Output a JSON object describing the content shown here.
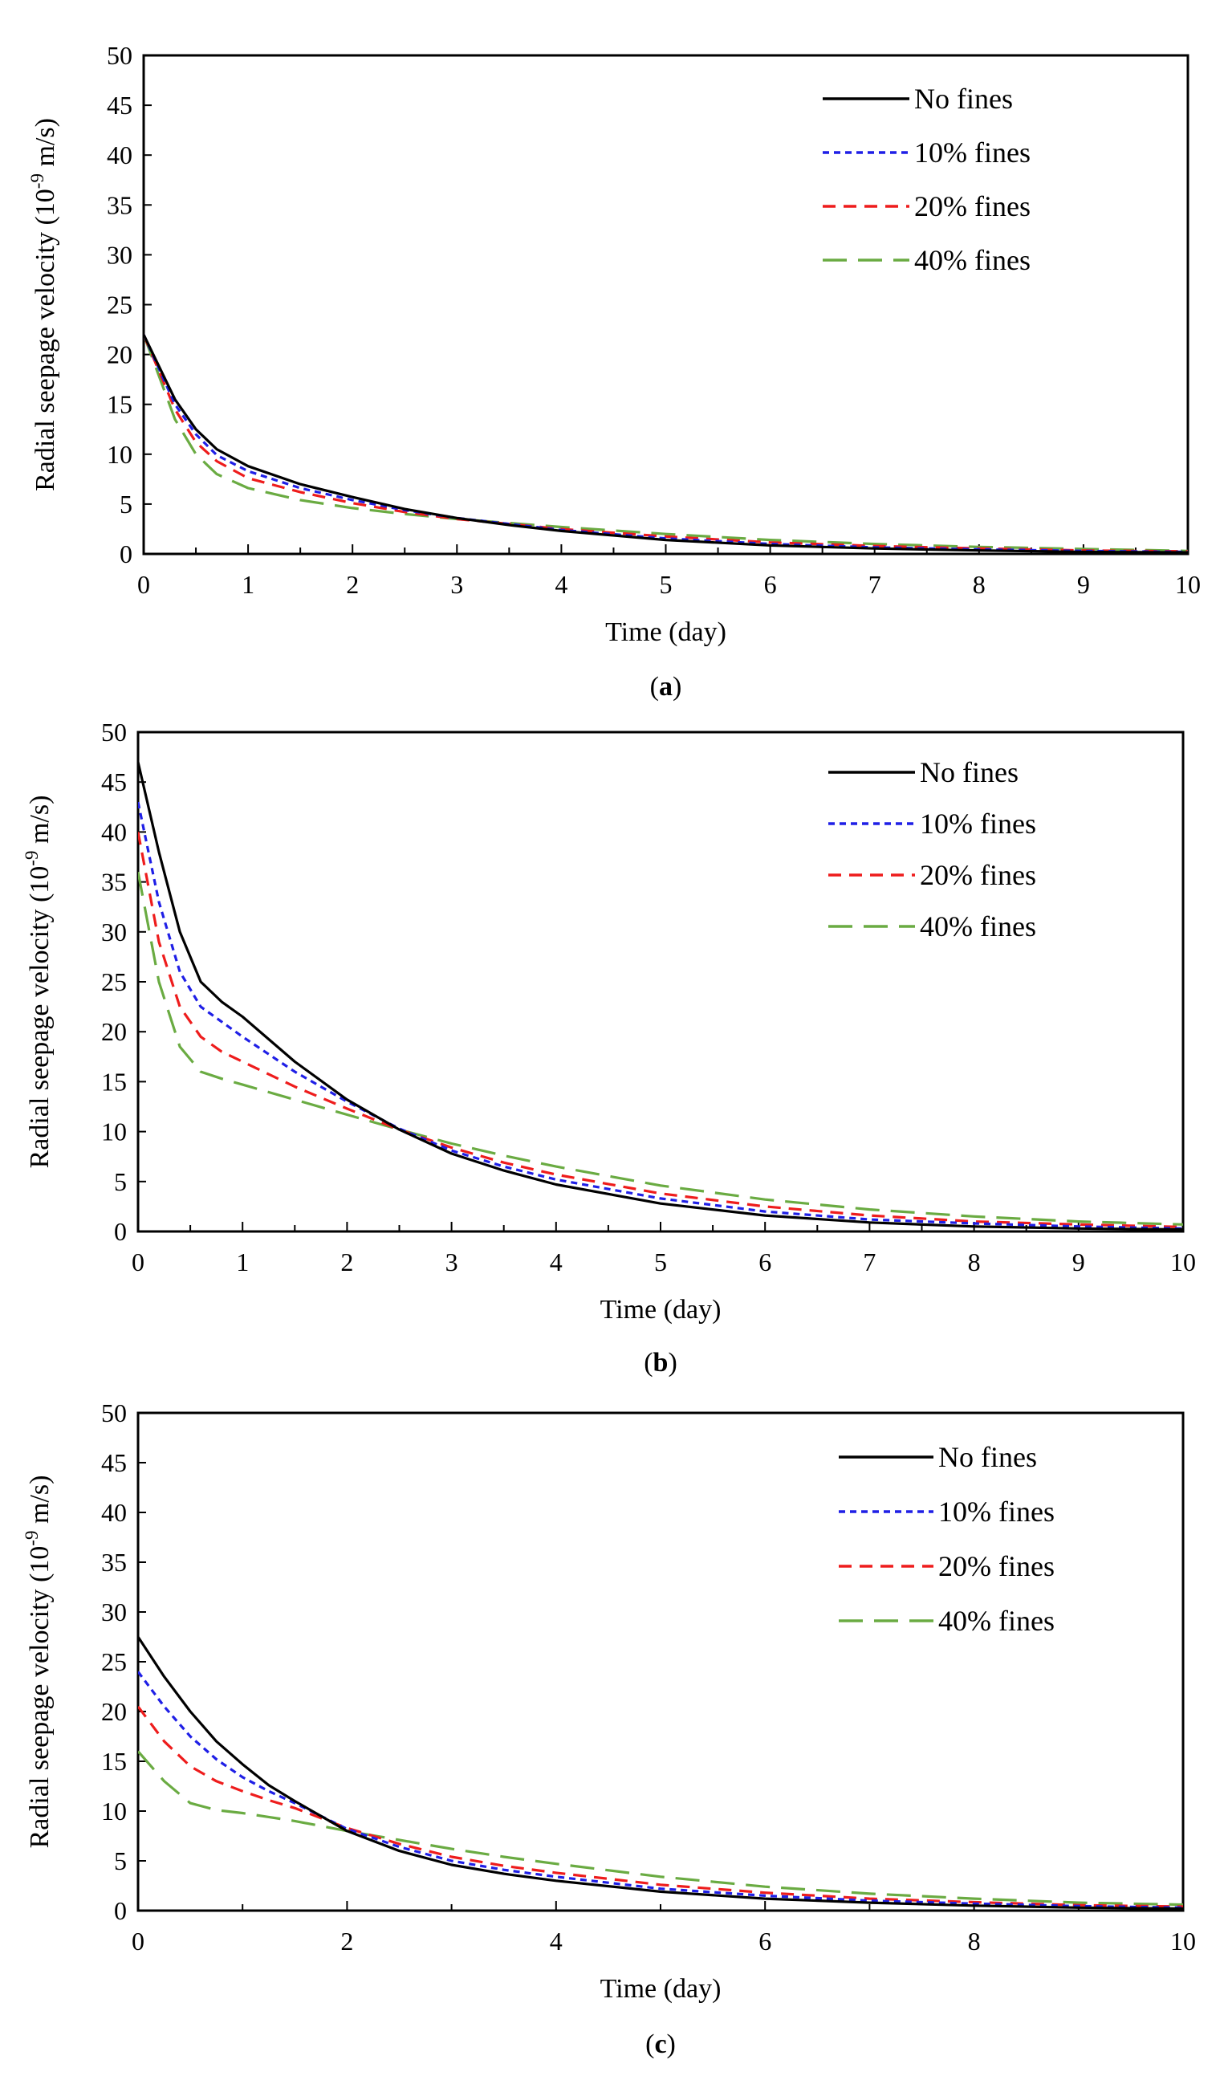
{
  "figure": {
    "ylabel_prefix": "Radial seepage velocity (10",
    "ylabel_exp": "-9",
    "ylabel_suffix": " m/s)",
    "xlabel": "Time (day)",
    "legend": [
      "No fines",
      "10% fines",
      "20% fines",
      "40% fines"
    ],
    "series_colors": [
      "#000000",
      "#1f1fe6",
      "#ee1c1c",
      "#6aab42"
    ]
  },
  "chart_data": [
    {
      "type": "line",
      "caption_open": "(",
      "caption_letter": "a",
      "caption_close": ")",
      "xlabel": "Time (day)",
      "ylabel": "Radial seepage velocity (10-9 m/s)",
      "xlim": [
        0,
        10
      ],
      "ylim": [
        0,
        50
      ],
      "xticks": [
        0,
        1,
        2,
        3,
        4,
        5,
        6,
        7,
        8,
        9,
        10
      ],
      "yticks": [
        0,
        5,
        10,
        15,
        20,
        25,
        30,
        35,
        40,
        45,
        50
      ],
      "legend_loc": "top-right",
      "series": [
        {
          "name": "No fines",
          "color": "#000000",
          "dash": "none",
          "x": [
            0,
            0.3,
            0.5,
            0.7,
            1,
            1.5,
            2,
            2.5,
            3,
            3.5,
            4,
            5,
            6,
            7,
            8,
            9,
            10
          ],
          "y": [
            22,
            15.5,
            12.5,
            10.5,
            8.8,
            7,
            5.7,
            4.5,
            3.6,
            2.9,
            2.3,
            1.4,
            0.85,
            0.55,
            0.35,
            0.2,
            0.15
          ]
        },
        {
          "name": "10% fines",
          "color": "#1f1fe6",
          "dash": "8,6",
          "x": [
            0,
            0.3,
            0.5,
            0.7,
            1,
            1.5,
            2,
            2.5,
            3,
            3.5,
            4,
            5,
            6,
            7,
            8,
            9,
            10
          ],
          "y": [
            22,
            15,
            12,
            9.9,
            8.3,
            6.6,
            5.4,
            4.4,
            3.6,
            3,
            2.4,
            1.55,
            1,
            0.65,
            0.45,
            0.3,
            0.2
          ]
        },
        {
          "name": "20% fines",
          "color": "#ee1c1c",
          "dash": "16,10",
          "x": [
            0,
            0.3,
            0.5,
            0.7,
            1,
            1.5,
            2,
            2.5,
            3,
            3.5,
            4,
            5,
            6,
            7,
            8,
            9,
            10
          ],
          "y": [
            22,
            14.5,
            11.2,
            9.3,
            7.6,
            6.2,
            5.1,
            4.2,
            3.5,
            3,
            2.5,
            1.75,
            1.15,
            0.8,
            0.55,
            0.35,
            0.25
          ]
        },
        {
          "name": "40% fines",
          "color": "#6aab42",
          "dash": "30,14",
          "x": [
            0,
            0.3,
            0.5,
            0.7,
            1,
            1.5,
            2,
            2.5,
            3,
            3.5,
            4,
            5,
            6,
            7,
            8,
            9,
            10
          ],
          "y": [
            22,
            13.5,
            10,
            8,
            6.6,
            5.4,
            4.6,
            4,
            3.5,
            3.1,
            2.7,
            2,
            1.4,
            1,
            0.7,
            0.5,
            0.3
          ]
        }
      ]
    },
    {
      "type": "line",
      "caption_open": "(",
      "caption_letter": "b",
      "caption_close": ")",
      "xlabel": "Time (day)",
      "ylabel": "Radial seepage velocity (10-9 m/s)",
      "xlim": [
        0,
        10
      ],
      "ylim": [
        0,
        50
      ],
      "xticks": [
        0,
        1,
        2,
        3,
        4,
        5,
        6,
        7,
        8,
        9,
        10
      ],
      "yticks": [
        0,
        5,
        10,
        15,
        20,
        25,
        30,
        35,
        40,
        45,
        50
      ],
      "legend_loc": "top-right",
      "series": [
        {
          "name": "No fines",
          "color": "#000000",
          "dash": "none",
          "x": [
            0,
            0.2,
            0.4,
            0.6,
            0.8,
            1,
            1.5,
            2,
            2.5,
            3,
            3.5,
            4,
            5,
            6,
            7,
            8,
            9,
            10
          ],
          "y": [
            47,
            38,
            30,
            25,
            23,
            21.5,
            17,
            13.2,
            10.2,
            7.8,
            6.1,
            4.7,
            2.8,
            1.6,
            0.9,
            0.5,
            0.3,
            0.2
          ]
        },
        {
          "name": "10% fines",
          "color": "#1f1fe6",
          "dash": "8,6",
          "x": [
            0,
            0.2,
            0.4,
            0.6,
            0.8,
            1,
            1.5,
            2,
            2.5,
            3,
            3.5,
            4,
            5,
            6,
            7,
            8,
            9,
            10
          ],
          "y": [
            43,
            33,
            26,
            22.5,
            21,
            19.5,
            16,
            13,
            10.3,
            8.1,
            6.5,
            5.2,
            3.3,
            2,
            1.2,
            0.8,
            0.5,
            0.3
          ]
        },
        {
          "name": "20% fines",
          "color": "#ee1c1c",
          "dash": "16,10",
          "x": [
            0,
            0.2,
            0.4,
            0.6,
            0.8,
            1,
            1.5,
            2,
            2.5,
            3,
            3.5,
            4,
            5,
            6,
            7,
            8,
            9,
            10
          ],
          "y": [
            40,
            29,
            22.5,
            19.5,
            18,
            17,
            14.5,
            12.3,
            10.2,
            8.4,
            6.9,
            5.7,
            3.8,
            2.5,
            1.6,
            1,
            0.7,
            0.45
          ]
        },
        {
          "name": "40% fines",
          "color": "#6aab42",
          "dash": "30,14",
          "x": [
            0,
            0.2,
            0.4,
            0.6,
            0.8,
            1,
            1.5,
            2,
            2.5,
            3,
            3.5,
            4,
            5,
            6,
            7,
            8,
            9,
            10
          ],
          "y": [
            36,
            25,
            18.5,
            16,
            15.3,
            14.7,
            13.2,
            11.7,
            10.2,
            8.8,
            7.6,
            6.5,
            4.6,
            3.2,
            2.2,
            1.5,
            1,
            0.7
          ]
        }
      ]
    },
    {
      "type": "line",
      "caption_open": "(",
      "caption_letter": "c",
      "caption_close": ")",
      "xlabel": "Time (day)",
      "ylabel": "Radial seepage velocity (10-9 m/s)",
      "xlim": [
        0,
        10
      ],
      "ylim": [
        0,
        50
      ],
      "xticks": [
        0,
        2,
        4,
        6,
        8,
        10
      ],
      "yticks": [
        0,
        5,
        10,
        15,
        20,
        25,
        30,
        35,
        40,
        45,
        50
      ],
      "legend_loc": "top-right",
      "series": [
        {
          "name": "No fines",
          "color": "#000000",
          "dash": "none",
          "x": [
            0,
            0.25,
            0.5,
            0.75,
            1,
            1.25,
            1.5,
            2,
            2.5,
            3,
            3.5,
            4,
            5,
            6,
            7,
            8,
            9,
            10
          ],
          "y": [
            27.5,
            23.5,
            20,
            17,
            14.7,
            12.6,
            11,
            8,
            6,
            4.6,
            3.7,
            3,
            1.9,
            1.2,
            0.8,
            0.5,
            0.3,
            0.2
          ]
        },
        {
          "name": "10% fines",
          "color": "#1f1fe6",
          "dash": "8,6",
          "x": [
            0,
            0.25,
            0.5,
            0.75,
            1,
            1.25,
            1.5,
            2,
            2.5,
            3,
            3.5,
            4,
            5,
            6,
            7,
            8,
            9,
            10
          ],
          "y": [
            24,
            20.5,
            17.5,
            15.2,
            13.4,
            12,
            10.8,
            8.2,
            6.4,
            5,
            4.1,
            3.4,
            2.2,
            1.5,
            1,
            0.7,
            0.45,
            0.3
          ]
        },
        {
          "name": "20% fines",
          "color": "#ee1c1c",
          "dash": "16,10",
          "x": [
            0,
            0.25,
            0.5,
            0.75,
            1,
            1.25,
            1.5,
            2,
            2.5,
            3,
            3.5,
            4,
            5,
            6,
            7,
            8,
            9,
            10
          ],
          "y": [
            20.5,
            17,
            14.5,
            13,
            12,
            11.1,
            10.3,
            8.3,
            6.7,
            5.4,
            4.5,
            3.8,
            2.6,
            1.8,
            1.2,
            0.85,
            0.55,
            0.4
          ]
        },
        {
          "name": "40% fines",
          "color": "#6aab42",
          "dash": "30,14",
          "x": [
            0,
            0.25,
            0.5,
            0.75,
            1,
            1.25,
            1.5,
            2,
            2.5,
            3,
            3.5,
            4,
            5,
            6,
            7,
            8,
            9,
            10
          ],
          "y": [
            16,
            13,
            10.8,
            10.1,
            9.8,
            9.4,
            9,
            8,
            7.1,
            6.2,
            5.4,
            4.7,
            3.4,
            2.4,
            1.7,
            1.2,
            0.8,
            0.6
          ]
        }
      ]
    }
  ]
}
